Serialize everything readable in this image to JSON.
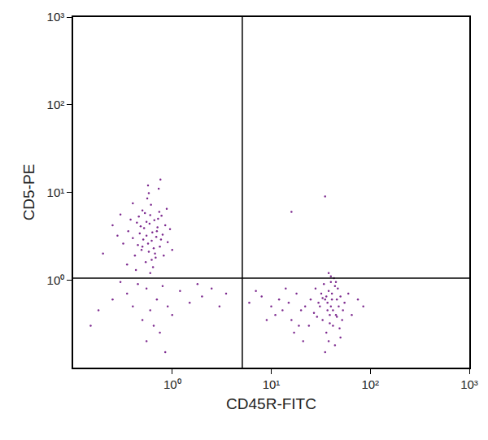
{
  "chart_data": {
    "type": "scatter",
    "x_label": "CD45R-FITC",
    "y_label": "CD5-PE",
    "log": true,
    "grid": false,
    "color": "#7d2a8f",
    "marker": "dot",
    "xlim": [
      0.1,
      1000
    ],
    "ylim": [
      0.1,
      1000
    ],
    "xticks": [
      {
        "value": 1,
        "label": "10⁰"
      },
      {
        "value": 10,
        "label": "10¹"
      },
      {
        "value": 100,
        "label": "10²"
      },
      {
        "value": 1000,
        "label": "10³"
      }
    ],
    "yticks": [
      {
        "value": 1,
        "label": "10⁰"
      },
      {
        "value": 10,
        "label": "10¹"
      },
      {
        "value": 100,
        "label": "10²"
      },
      {
        "value": 1000,
        "label": "10³"
      }
    ],
    "quadrant_lines": {
      "x": 5.1,
      "y": 1.05
    },
    "x": [
      0.55,
      0.62,
      0.48,
      0.7,
      0.58,
      0.45,
      0.66,
      0.52,
      0.75,
      0.6,
      0.4,
      0.68,
      0.5,
      0.8,
      0.57,
      0.63,
      0.44,
      0.72,
      0.54,
      0.85,
      0.36,
      0.61,
      0.49,
      0.77,
      0.59,
      0.42,
      0.69,
      0.53,
      0.9,
      0.64,
      0.32,
      0.56,
      0.74,
      0.47,
      0.65,
      0.38,
      0.82,
      0.51,
      0.6,
      0.71,
      0.28,
      0.95,
      0.46,
      0.58,
      0.67,
      0.43,
      0.78,
      0.55,
      0.62,
      0.5,
      0.25,
      0.88,
      0.4,
      0.73,
      0.35,
      1.0,
      0.57,
      0.3,
      0.76,
      0.2,
      0.55,
      0.7,
      0.45,
      0.9,
      0.6,
      0.35,
      1.2,
      0.5,
      0.8,
      1.5,
      0.4,
      0.65,
      2.0,
      0.3,
      1.0,
      2.5,
      0.25,
      0.75,
      3.0,
      0.55,
      0.18,
      1.8,
      0.85,
      3.5,
      0.15,
      40,
      35,
      45,
      38,
      42,
      30,
      50,
      37,
      44,
      33,
      40,
      48,
      36,
      41,
      28,
      46,
      39,
      34,
      52,
      43,
      31,
      38,
      47,
      36,
      55,
      25,
      42,
      40,
      29,
      49,
      37,
      60,
      44,
      32,
      39,
      22,
      45,
      35,
      53,
      27,
      41,
      38,
      50,
      33,
      46,
      15,
      18,
      12,
      20,
      10,
      16,
      8,
      14,
      19,
      6,
      11,
      17,
      7,
      13,
      24,
      9,
      65,
      75,
      21,
      85,
      35,
      16
    ],
    "y": [
      3.2,
      2.8,
      4.1,
      3.6,
      2.1,
      2.5,
      4.8,
      3.9,
      2.4,
      5.5,
      3.0,
      1.8,
      6.2,
      3.3,
      2.6,
      3.5,
      4.5,
      5.0,
      1.6,
      4.2,
      3.6,
      7.2,
      2.2,
      2.9,
      4.4,
      1.9,
      3.1,
      5.8,
      2.7,
      1.4,
      2.6,
      8.5,
      6.0,
      3.4,
      2.3,
      4.9,
      1.9,
      2.9,
      1.2,
      4.0,
      3.2,
      3.8,
      5.3,
      9.8,
      2.0,
      1.3,
      5.4,
      4.6,
      1.7,
      2.4,
      4.2,
      6.5,
      7.5,
      11,
      1.5,
      2.2,
      12,
      5.6,
      14,
      2.0,
      0.8,
      0.6,
      0.9,
      0.5,
      0.45,
      0.7,
      0.75,
      0.35,
      0.85,
      0.55,
      0.5,
      0.3,
      0.65,
      0.95,
      0.4,
      0.8,
      0.6,
      0.25,
      0.5,
      0.2,
      0.45,
      0.9,
      0.15,
      0.7,
      0.3,
      0.5,
      0.6,
      0.4,
      0.75,
      0.3,
      0.55,
      0.65,
      0.45,
      0.85,
      0.35,
      0.95,
      0.5,
      0.25,
      0.7,
      0.8,
      0.6,
      0.4,
      0.9,
      0.35,
      1.05,
      0.5,
      0.2,
      0.8,
      0.65,
      0.55,
      0.6,
      0.45,
      1.1,
      0.38,
      0.28,
      0.55,
      0.7,
      0.18,
      0.7,
      0.32,
      0.5,
      0.95,
      0.15,
      0.45,
      0.42,
      0.6,
      1.2,
      0.22,
      0.62,
      0.38,
      0.55,
      0.7,
      0.6,
      0.45,
      0.5,
      0.35,
      0.65,
      0.8,
      0.3,
      0.55,
      0.4,
      0.25,
      0.75,
      0.45,
      0.3,
      0.35,
      0.4,
      0.6,
      0.2,
      0.5,
      9,
      6
    ]
  }
}
